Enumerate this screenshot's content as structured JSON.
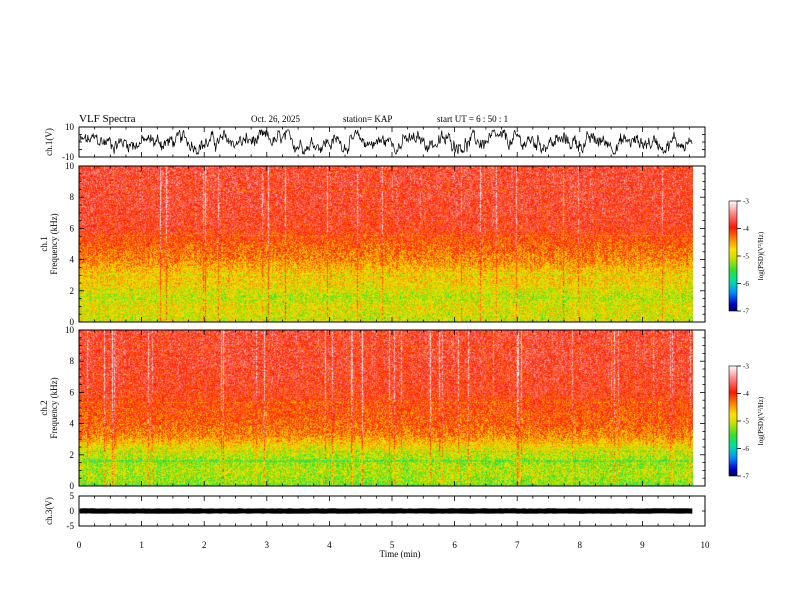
{
  "header": {
    "title": "VLF Spectra",
    "date": "Oct. 26, 2025",
    "station": "station= KAP",
    "start": "start  UT =   6  : 50 : 1"
  },
  "chart_data": {
    "type": "heatmap",
    "xlabel": "Time  (min)",
    "xlim": [
      0,
      10
    ],
    "xticks": [
      "0",
      "1",
      "2",
      "3",
      "4",
      "5",
      "6",
      "7",
      "8",
      "9",
      "10"
    ],
    "data_end_min": 9.8,
    "panels": [
      {
        "name": "ch1-waveform",
        "type": "line",
        "ylabel": "ch.1(V)",
        "ylim": [
          -10,
          10
        ],
        "yticks": [
          "10",
          "-10"
        ],
        "description_values": {
          "amplitude_range": [
            -8,
            8
          ]
        }
      },
      {
        "name": "ch1-spectrogram",
        "type": "heatmap",
        "ylabel": "ch.1\nFrequency  (kHz)",
        "ylabel_line1": "ch.1",
        "ylabel_line2": "Frequency  (kHz)",
        "ylim": [
          0,
          10
        ],
        "yticks": [
          "0",
          "2",
          "4",
          "6",
          "8",
          "10"
        ],
        "band_profile": [
          {
            "f": 0.3,
            "level": -5.0
          },
          {
            "f": 1.0,
            "level": -4.9
          },
          {
            "f": 1.6,
            "level": -5.1
          },
          {
            "f": 2.4,
            "level": -4.8
          },
          {
            "f": 3.2,
            "level": -4.7
          },
          {
            "f": 4.0,
            "level": -4.4
          },
          {
            "f": 5.0,
            "level": -4.2
          },
          {
            "f": 6.0,
            "level": -3.9
          },
          {
            "f": 8.0,
            "level": -3.8
          },
          {
            "f": 10.0,
            "level": -3.8
          }
        ],
        "colorbar": {
          "label": "log(PSD)(V²/Hz)",
          "range": [
            -7,
            -3
          ],
          "ticks": [
            "-3",
            "-4",
            "-5",
            "-6",
            "-7"
          ]
        }
      },
      {
        "name": "ch2-spectrogram",
        "type": "heatmap",
        "ylabel_line1": "ch.2",
        "ylabel_line2": "Frequency  (kHz)",
        "ylim": [
          0,
          10
        ],
        "yticks": [
          "0",
          "2",
          "4",
          "6",
          "8",
          "10"
        ],
        "band_profile": [
          {
            "f": 0.3,
            "level": -5.2
          },
          {
            "f": 1.0,
            "level": -5.1
          },
          {
            "f": 1.6,
            "level": -5.2
          },
          {
            "f": 2.4,
            "level": -4.9
          },
          {
            "f": 3.2,
            "level": -4.4
          },
          {
            "f": 4.0,
            "level": -4.2
          },
          {
            "f": 5.0,
            "level": -4.1
          },
          {
            "f": 6.0,
            "level": -3.9
          },
          {
            "f": 8.0,
            "level": -3.8
          },
          {
            "f": 10.0,
            "level": -3.8
          }
        ],
        "colorbar": {
          "label": "log(PSD)(V²/Hz)",
          "range": [
            -7,
            -3
          ],
          "ticks": [
            "-3",
            "-4",
            "-5",
            "-6",
            "-7"
          ]
        }
      },
      {
        "name": "ch3-waveform",
        "type": "line",
        "ylabel": "ch.3(V)",
        "ylim": [
          -5,
          5
        ],
        "yticks": [
          "5",
          "0",
          "-5"
        ],
        "description_values": {
          "amplitude_range": [
            -0.8,
            0.8
          ]
        }
      }
    ]
  }
}
